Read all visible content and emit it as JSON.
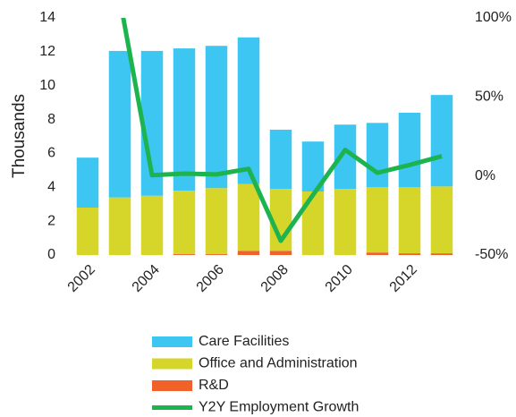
{
  "chart_data": {
    "type": "bar",
    "stacked": true,
    "y_label": "Thousands",
    "categories": [
      "2002",
      null,
      "2004",
      null,
      "2006",
      null,
      "2008",
      null,
      "2010",
      null,
      "2012",
      null
    ],
    "series": [
      {
        "name": "Care Facilities",
        "color": "#3ec6f2",
        "values": [
          2.95,
          8.65,
          8.55,
          8.4,
          8.4,
          8.65,
          3.5,
          2.95,
          3.8,
          3.8,
          4.4,
          5.4
        ]
      },
      {
        "name": "Office and Administration",
        "color": "#d6d62a",
        "values": [
          2.8,
          3.4,
          3.5,
          3.75,
          3.9,
          3.95,
          3.65,
          3.75,
          3.9,
          3.85,
          3.9,
          3.95
        ]
      },
      {
        "name": "R&D",
        "color": "#f0622a",
        "values": [
          0,
          0,
          0,
          0.05,
          0.05,
          0.25,
          0.25,
          0,
          0,
          0.15,
          0.1,
          0.1
        ]
      },
      {
        "name": "Y2Y Employment Growth",
        "color": "#1db34f",
        "type": "line",
        "axis": "y2",
        "values": [
          null,
          112,
          0.5,
          1.5,
          1,
          4.5,
          -41,
          -12,
          16.5,
          2,
          7,
          12.5
        ]
      }
    ],
    "ylim": [
      0,
      14
    ],
    "yticks": [
      0,
      2,
      4,
      6,
      8,
      10,
      12,
      14
    ],
    "y2lim": [
      -50,
      100
    ],
    "y2ticks": [
      {
        "value": -50,
        "label": "-50%"
      },
      {
        "value": 0,
        "label": "0%"
      },
      {
        "value": 50,
        "label": "50%"
      },
      {
        "value": 100,
        "label": "100%"
      }
    ],
    "grid": false,
    "legend": "bottom"
  }
}
